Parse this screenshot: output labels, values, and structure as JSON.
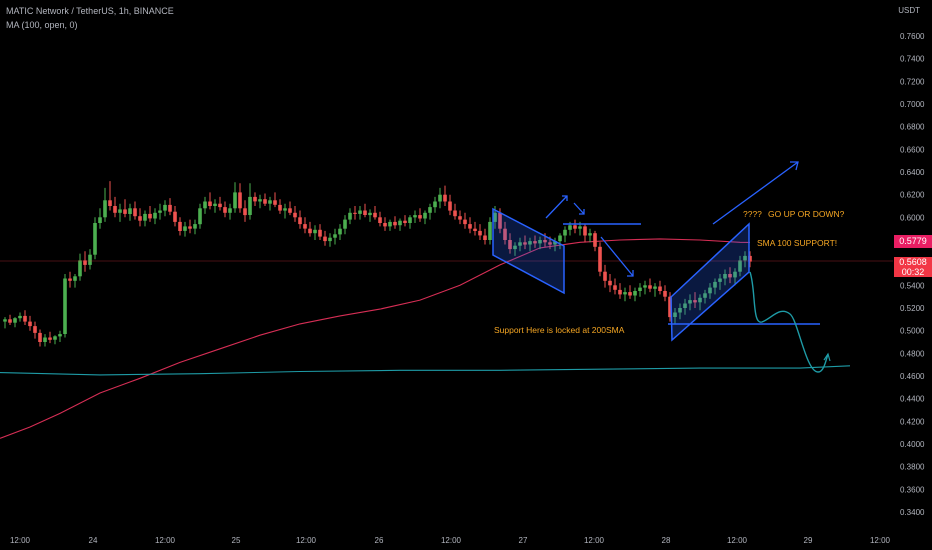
{
  "header": {
    "symbol_line": "MATIC Network / TetherUS, 1h, BINANCE",
    "indicator_line": "MA (100, open, 0)"
  },
  "axis": {
    "unit": "USDT",
    "y_ticks": [
      "0.7600",
      "0.7400",
      "0.7200",
      "0.7000",
      "0.6800",
      "0.6600",
      "0.6400",
      "0.6200",
      "0.6000",
      "0.5800",
      "0.5600",
      "0.5400",
      "0.5200",
      "0.5000",
      "0.4800",
      "0.4600",
      "0.4400",
      "0.4200",
      "0.4000",
      "0.3800",
      "0.3600",
      "0.3400"
    ],
    "x_ticks": [
      "12:00",
      "24",
      "12:00",
      "25",
      "12:00",
      "26",
      "12:00",
      "27",
      "12:00",
      "28",
      "12:00",
      "29",
      "12:00"
    ]
  },
  "badges": {
    "ma_value": "0.5779",
    "last_price": "0.5608",
    "countdown": "00:32"
  },
  "annotations": {
    "question": "????",
    "go_up_or_down": "GO UP OR DOWN?",
    "sma_support": "SMA 100 SUPPORT!",
    "support_200": "Support Here is locked at 200SMA"
  },
  "colors": {
    "background": "#000000",
    "bull": "#26a69a",
    "bull_body": "#4caf50",
    "bear": "#ef5350",
    "ma100": "#d62e55",
    "ma200": "#1e9ba6",
    "drawing": "#2962ff",
    "annotation_text": "#f5a623",
    "badge_ma": "#e91e63",
    "badge_last": "#f23645"
  },
  "chart_data": {
    "type": "candlestick",
    "title": "MATIC Network / TetherUS, 1h, BINANCE",
    "ylabel": "USDT",
    "ylim": [
      0.33,
      0.77
    ],
    "x_labels": [
      "12:00",
      "24",
      "12:00",
      "25",
      "12:00",
      "26",
      "12:00",
      "27",
      "12:00",
      "28",
      "12:00",
      "29",
      "12:00"
    ],
    "series": [
      {
        "name": "MA (100, open, 0)",
        "color": "#d62e55",
        "points": [
          [
            0,
            0.405
          ],
          [
            30,
            0.415
          ],
          [
            60,
            0.427
          ],
          [
            100,
            0.445
          ],
          [
            140,
            0.458
          ],
          [
            180,
            0.472
          ],
          [
            220,
            0.484
          ],
          [
            260,
            0.496
          ],
          [
            300,
            0.506
          ],
          [
            340,
            0.513
          ],
          [
            380,
            0.519
          ],
          [
            420,
            0.527
          ],
          [
            460,
            0.54
          ],
          [
            500,
            0.558
          ],
          [
            540,
            0.573
          ],
          [
            580,
            0.578
          ],
          [
            620,
            0.58
          ],
          [
            660,
            0.581
          ],
          [
            700,
            0.58
          ],
          [
            740,
            0.578
          ],
          [
            750,
            0.5779
          ]
        ]
      },
      {
        "name": "MA 200",
        "color": "#1e9ba6",
        "points": [
          [
            0,
            0.463
          ],
          [
            100,
            0.461
          ],
          [
            200,
            0.462
          ],
          [
            300,
            0.464
          ],
          [
            400,
            0.465
          ],
          [
            500,
            0.465
          ],
          [
            600,
            0.466
          ],
          [
            700,
            0.467
          ],
          [
            800,
            0.467
          ],
          [
            850,
            0.469
          ]
        ]
      }
    ],
    "candles": [
      [
        5,
        0.508,
        0.512,
        0.502,
        0.51
      ],
      [
        10,
        0.51,
        0.514,
        0.505,
        0.507
      ],
      [
        15,
        0.507,
        0.512,
        0.503,
        0.511
      ],
      [
        20,
        0.511,
        0.516,
        0.508,
        0.513
      ],
      [
        25,
        0.513,
        0.518,
        0.505,
        0.508
      ],
      [
        30,
        0.508,
        0.513,
        0.5,
        0.504
      ],
      [
        35,
        0.504,
        0.508,
        0.493,
        0.498
      ],
      [
        40,
        0.498,
        0.501,
        0.486,
        0.49
      ],
      [
        45,
        0.49,
        0.497,
        0.486,
        0.494
      ],
      [
        50,
        0.494,
        0.499,
        0.489,
        0.492
      ],
      [
        55,
        0.492,
        0.496,
        0.488,
        0.495
      ],
      [
        60,
        0.495,
        0.5,
        0.49,
        0.497
      ],
      [
        65,
        0.497,
        0.55,
        0.494,
        0.546
      ],
      [
        70,
        0.546,
        0.552,
        0.538,
        0.544
      ],
      [
        75,
        0.544,
        0.55,
        0.538,
        0.548
      ],
      [
        80,
        0.548,
        0.568,
        0.544,
        0.562
      ],
      [
        85,
        0.562,
        0.57,
        0.552,
        0.558
      ],
      [
        90,
        0.558,
        0.572,
        0.554,
        0.567
      ],
      [
        95,
        0.567,
        0.6,
        0.563,
        0.595
      ],
      [
        100,
        0.595,
        0.608,
        0.59,
        0.6
      ],
      [
        105,
        0.6,
        0.626,
        0.596,
        0.615
      ],
      [
        110,
        0.615,
        0.632,
        0.606,
        0.61
      ],
      [
        115,
        0.61,
        0.618,
        0.6,
        0.604
      ],
      [
        120,
        0.604,
        0.612,
        0.596,
        0.607
      ],
      [
        125,
        0.607,
        0.616,
        0.6,
        0.603
      ],
      [
        130,
        0.603,
        0.612,
        0.597,
        0.608
      ],
      [
        135,
        0.608,
        0.614,
        0.598,
        0.601
      ],
      [
        140,
        0.601,
        0.608,
        0.592,
        0.597
      ],
      [
        145,
        0.597,
        0.606,
        0.592,
        0.603
      ],
      [
        150,
        0.603,
        0.61,
        0.596,
        0.599
      ],
      [
        155,
        0.599,
        0.608,
        0.594,
        0.604
      ],
      [
        160,
        0.604,
        0.612,
        0.598,
        0.606
      ],
      [
        165,
        0.606,
        0.615,
        0.601,
        0.611
      ],
      [
        170,
        0.611,
        0.617,
        0.602,
        0.605
      ],
      [
        175,
        0.605,
        0.61,
        0.592,
        0.596
      ],
      [
        180,
        0.596,
        0.6,
        0.584,
        0.588
      ],
      [
        185,
        0.588,
        0.596,
        0.583,
        0.592
      ],
      [
        190,
        0.592,
        0.598,
        0.586,
        0.59
      ],
      [
        195,
        0.59,
        0.598,
        0.585,
        0.594
      ],
      [
        200,
        0.594,
        0.612,
        0.59,
        0.608
      ],
      [
        205,
        0.608,
        0.618,
        0.603,
        0.614
      ],
      [
        210,
        0.614,
        0.622,
        0.607,
        0.61
      ],
      [
        215,
        0.61,
        0.616,
        0.604,
        0.612
      ],
      [
        220,
        0.612,
        0.618,
        0.606,
        0.609
      ],
      [
        225,
        0.609,
        0.614,
        0.6,
        0.604
      ],
      [
        230,
        0.604,
        0.612,
        0.598,
        0.608
      ],
      [
        235,
        0.608,
        0.631,
        0.604,
        0.622
      ],
      [
        240,
        0.622,
        0.63,
        0.604,
        0.608
      ],
      [
        245,
        0.608,
        0.615,
        0.596,
        0.602
      ],
      [
        250,
        0.602,
        0.63,
        0.598,
        0.618
      ],
      [
        255,
        0.618,
        0.622,
        0.61,
        0.614
      ],
      [
        260,
        0.614,
        0.62,
        0.608,
        0.616
      ],
      [
        265,
        0.616,
        0.621,
        0.61,
        0.612
      ],
      [
        270,
        0.612,
        0.618,
        0.606,
        0.615
      ],
      [
        275,
        0.615,
        0.622,
        0.609,
        0.611
      ],
      [
        280,
        0.611,
        0.616,
        0.603,
        0.606
      ],
      [
        285,
        0.606,
        0.612,
        0.599,
        0.608
      ],
      [
        290,
        0.608,
        0.614,
        0.602,
        0.604
      ],
      [
        295,
        0.604,
        0.61,
        0.596,
        0.6
      ],
      [
        300,
        0.6,
        0.606,
        0.59,
        0.594
      ],
      [
        305,
        0.594,
        0.6,
        0.586,
        0.59
      ],
      [
        310,
        0.59,
        0.596,
        0.583,
        0.586
      ],
      [
        315,
        0.586,
        0.593,
        0.58,
        0.589
      ],
      [
        320,
        0.589,
        0.594,
        0.58,
        0.583
      ],
      [
        325,
        0.583,
        0.588,
        0.575,
        0.579
      ],
      [
        330,
        0.579,
        0.586,
        0.574,
        0.582
      ],
      [
        335,
        0.582,
        0.59,
        0.576,
        0.585
      ],
      [
        340,
        0.585,
        0.594,
        0.58,
        0.59
      ],
      [
        345,
        0.59,
        0.602,
        0.585,
        0.598
      ],
      [
        350,
        0.598,
        0.608,
        0.594,
        0.604
      ],
      [
        355,
        0.604,
        0.61,
        0.598,
        0.603
      ],
      [
        360,
        0.603,
        0.61,
        0.598,
        0.606
      ],
      [
        365,
        0.606,
        0.612,
        0.6,
        0.602
      ],
      [
        370,
        0.602,
        0.607,
        0.596,
        0.604
      ],
      [
        375,
        0.604,
        0.61,
        0.598,
        0.6
      ],
      [
        380,
        0.6,
        0.605,
        0.592,
        0.595
      ],
      [
        385,
        0.595,
        0.6,
        0.588,
        0.592
      ],
      [
        390,
        0.592,
        0.598,
        0.588,
        0.596
      ],
      [
        395,
        0.596,
        0.601,
        0.59,
        0.593
      ],
      [
        400,
        0.593,
        0.599,
        0.588,
        0.597
      ],
      [
        405,
        0.597,
        0.602,
        0.592,
        0.595
      ],
      [
        410,
        0.595,
        0.602,
        0.59,
        0.6
      ],
      [
        415,
        0.6,
        0.606,
        0.595,
        0.602
      ],
      [
        420,
        0.602,
        0.608,
        0.596,
        0.599
      ],
      [
        425,
        0.599,
        0.606,
        0.594,
        0.604
      ],
      [
        430,
        0.604,
        0.612,
        0.598,
        0.609
      ],
      [
        435,
        0.609,
        0.618,
        0.604,
        0.614
      ],
      [
        440,
        0.614,
        0.626,
        0.608,
        0.62
      ],
      [
        445,
        0.62,
        0.628,
        0.61,
        0.614
      ],
      [
        450,
        0.614,
        0.62,
        0.602,
        0.606
      ],
      [
        455,
        0.606,
        0.612,
        0.598,
        0.601
      ],
      [
        460,
        0.601,
        0.606,
        0.594,
        0.598
      ],
      [
        465,
        0.598,
        0.604,
        0.59,
        0.594
      ],
      [
        470,
        0.594,
        0.6,
        0.586,
        0.59
      ],
      [
        475,
        0.59,
        0.596,
        0.584,
        0.588
      ],
      [
        480,
        0.588,
        0.594,
        0.58,
        0.584
      ],
      [
        485,
        0.584,
        0.59,
        0.576,
        0.58
      ],
      [
        490,
        0.58,
        0.6,
        0.576,
        0.596
      ],
      [
        495,
        0.596,
        0.61,
        0.59,
        0.604
      ],
      [
        500,
        0.604,
        0.608,
        0.586,
        0.59
      ],
      [
        505,
        0.59,
        0.596,
        0.576,
        0.58
      ],
      [
        510,
        0.58,
        0.586,
        0.568,
        0.572
      ],
      [
        515,
        0.572,
        0.578,
        0.566,
        0.575
      ],
      [
        520,
        0.575,
        0.582,
        0.57,
        0.578
      ],
      [
        525,
        0.578,
        0.584,
        0.572,
        0.576
      ],
      [
        530,
        0.576,
        0.582,
        0.57,
        0.579
      ],
      [
        535,
        0.579,
        0.584,
        0.573,
        0.577
      ],
      [
        540,
        0.577,
        0.583,
        0.572,
        0.58
      ],
      [
        545,
        0.58,
        0.586,
        0.574,
        0.578
      ],
      [
        550,
        0.578,
        0.583,
        0.572,
        0.576
      ],
      [
        555,
        0.576,
        0.582,
        0.57,
        0.579
      ],
      [
        560,
        0.579,
        0.586,
        0.572,
        0.584
      ],
      [
        565,
        0.584,
        0.592,
        0.578,
        0.589
      ],
      [
        570,
        0.589,
        0.596,
        0.584,
        0.593
      ],
      [
        575,
        0.593,
        0.598,
        0.586,
        0.59
      ],
      [
        580,
        0.59,
        0.596,
        0.584,
        0.592
      ],
      [
        585,
        0.592,
        0.594,
        0.578,
        0.584
      ],
      [
        590,
        0.584,
        0.59,
        0.578,
        0.586
      ],
      [
        595,
        0.586,
        0.588,
        0.57,
        0.574
      ],
      [
        600,
        0.574,
        0.578,
        0.548,
        0.552
      ],
      [
        605,
        0.552,
        0.558,
        0.538,
        0.544
      ],
      [
        610,
        0.544,
        0.55,
        0.534,
        0.54
      ],
      [
        615,
        0.54,
        0.546,
        0.532,
        0.536
      ],
      [
        620,
        0.536,
        0.542,
        0.528,
        0.532
      ],
      [
        625,
        0.532,
        0.538,
        0.526,
        0.534
      ],
      [
        630,
        0.534,
        0.54,
        0.528,
        0.531
      ],
      [
        635,
        0.531,
        0.538,
        0.526,
        0.535
      ],
      [
        640,
        0.535,
        0.542,
        0.53,
        0.538
      ],
      [
        645,
        0.538,
        0.544,
        0.532,
        0.54
      ],
      [
        650,
        0.54,
        0.546,
        0.534,
        0.537
      ],
      [
        655,
        0.537,
        0.542,
        0.53,
        0.539
      ],
      [
        660,
        0.539,
        0.544,
        0.532,
        0.535
      ],
      [
        665,
        0.535,
        0.54,
        0.526,
        0.53
      ],
      [
        670,
        0.53,
        0.534,
        0.508,
        0.512
      ],
      [
        675,
        0.512,
        0.52,
        0.506,
        0.516
      ],
      [
        680,
        0.516,
        0.524,
        0.51,
        0.52
      ],
      [
        685,
        0.52,
        0.528,
        0.514,
        0.524
      ],
      [
        690,
        0.524,
        0.532,
        0.518,
        0.527
      ],
      [
        695,
        0.527,
        0.534,
        0.52,
        0.525
      ],
      [
        700,
        0.525,
        0.532,
        0.518,
        0.529
      ],
      [
        705,
        0.529,
        0.536,
        0.524,
        0.533
      ],
      [
        710,
        0.533,
        0.542,
        0.528,
        0.538
      ],
      [
        715,
        0.538,
        0.546,
        0.532,
        0.543
      ],
      [
        720,
        0.543,
        0.55,
        0.536,
        0.546
      ],
      [
        725,
        0.546,
        0.554,
        0.54,
        0.55
      ],
      [
        730,
        0.55,
        0.556,
        0.542,
        0.547
      ],
      [
        735,
        0.547,
        0.555,
        0.54,
        0.552
      ],
      [
        740,
        0.552,
        0.566,
        0.548,
        0.562
      ],
      [
        745,
        0.562,
        0.57,
        0.556,
        0.566
      ],
      [
        750,
        0.566,
        0.57,
        0.556,
        0.561
      ]
    ]
  }
}
